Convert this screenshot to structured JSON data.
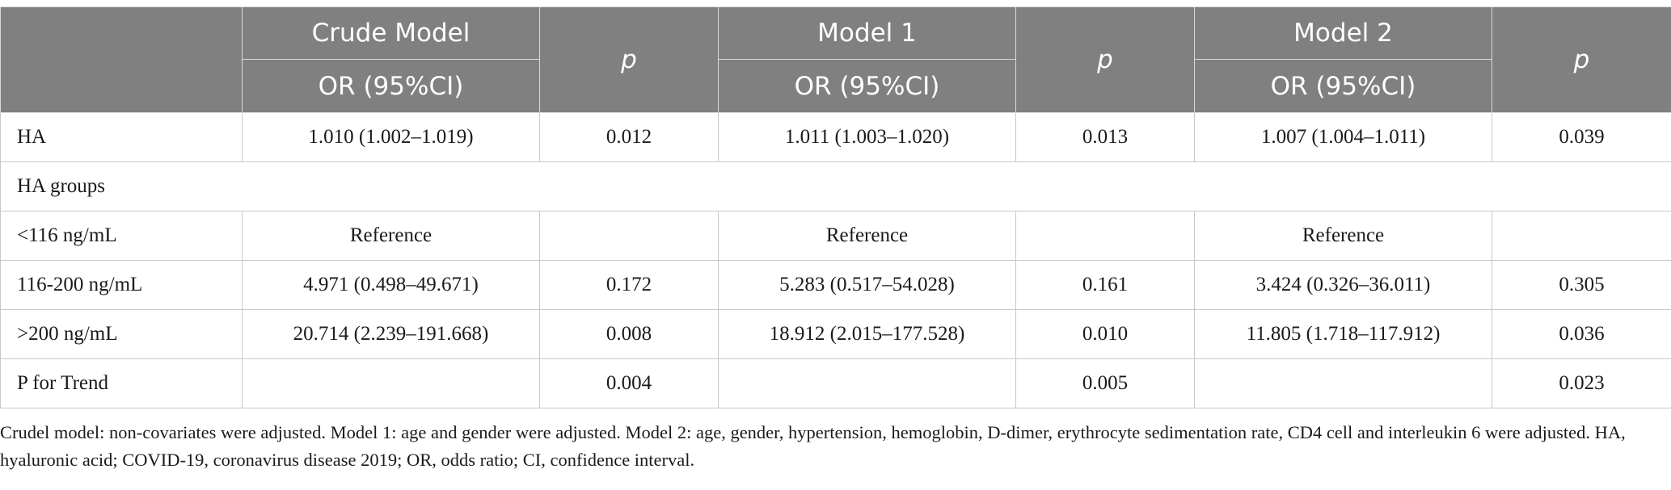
{
  "header": {
    "crude_model": "Crude Model",
    "model1": "Model 1",
    "model2": "Model 2",
    "p": "p",
    "or_ci": "OR (95%CI)"
  },
  "rows": [
    {
      "label": "HA",
      "crude": "1.010 (1.002–1.019)",
      "p1": "0.012",
      "m1": "1.011 (1.003–1.020)",
      "p2": "0.013",
      "m2": "1.007 (1.004–1.011)",
      "p3": "0.039"
    },
    {
      "label": "HA groups"
    },
    {
      "label": "<116 ng/mL",
      "crude": "Reference",
      "p1": "",
      "m1": "Reference",
      "p2": "",
      "m2": "Reference",
      "p3": ""
    },
    {
      "label": "116-200 ng/mL",
      "crude": "4.971 (0.498–49.671)",
      "p1": "0.172",
      "m1": "5.283 (0.517–54.028)",
      "p2": "0.161",
      "m2": "3.424 (0.326–36.011)",
      "p3": "0.305"
    },
    {
      "label": ">200 ng/mL",
      "crude": "20.714 (2.239–191.668)",
      "p1": "0.008",
      "m1": "18.912 (2.015–177.528)",
      "p2": "0.010",
      "m2": "11.805 (1.718–117.912)",
      "p3": "0.036"
    },
    {
      "label": "P for Trend",
      "crude": "",
      "p1": "0.004",
      "m1": "",
      "p2": "0.005",
      "m2": "",
      "p3": "0.023"
    }
  ],
  "footnote": "Crudel model: non-covariates were adjusted. Model 1: age and gender were adjusted. Model 2: age, gender, hypertension, hemoglobin, D-dimer, erythrocyte sedimentation rate, CD4 cell and interleukin 6 were adjusted. HA, hyaluronic acid; COVID-19, coronavirus disease 2019; OR, odds ratio; CI, confidence interval."
}
